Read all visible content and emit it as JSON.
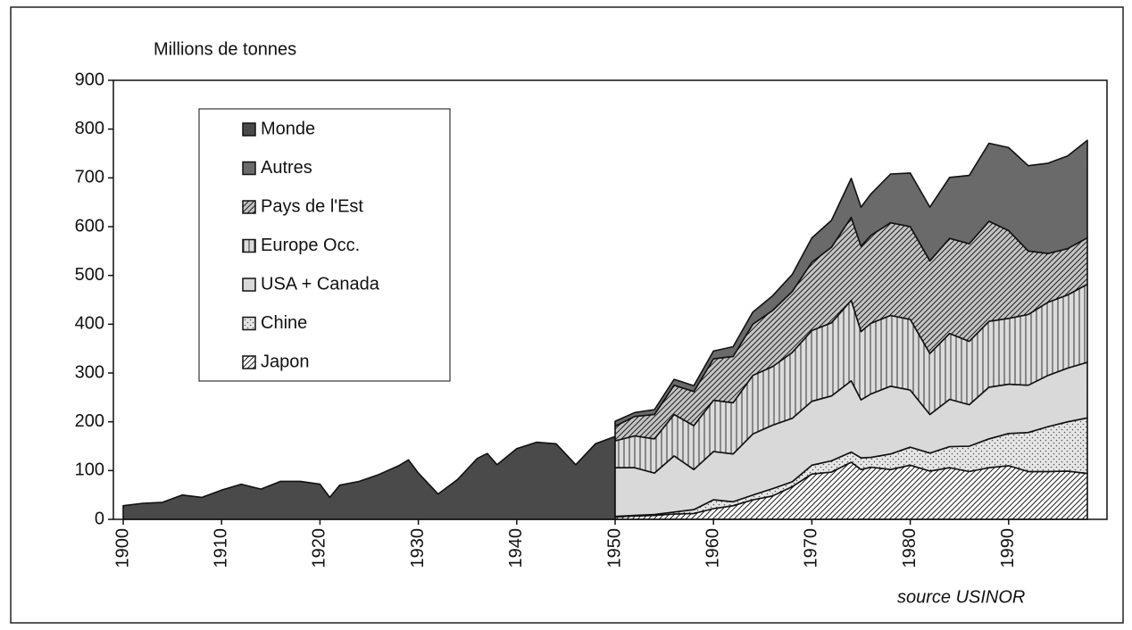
{
  "chart_data": {
    "type": "stacked_area",
    "y_label": "Millions de tonnes",
    "source": "source USINOR",
    "x": [
      1900,
      1902,
      1904,
      1906,
      1908,
      1910,
      1912,
      1914,
      1916,
      1918,
      1920,
      1921,
      1922,
      1924,
      1926,
      1928,
      1929,
      1930,
      1932,
      1934,
      1936,
      1937,
      1938,
      1940,
      1942,
      1944,
      1946,
      1948,
      1950,
      1952,
      1954,
      1956,
      1958,
      1960,
      1962,
      1964,
      1966,
      1968,
      1970,
      1972,
      1974,
      1975,
      1976,
      1978,
      1980,
      1982,
      1984,
      1986,
      1988,
      1990,
      1992,
      1994,
      1996,
      1998
    ],
    "xlim": [
      1899,
      2000
    ],
    "xticks": [
      1900,
      1910,
      1920,
      1930,
      1940,
      1950,
      1960,
      1970,
      1980,
      1990
    ],
    "ylim": [
      0,
      900
    ],
    "yticks": [
      0,
      100,
      200,
      300,
      400,
      500,
      600,
      700,
      800,
      900
    ],
    "grid": false,
    "legend_position": "upper left",
    "series": [
      {
        "name": "Monde",
        "stack": "world",
        "color": "#4a4a4a",
        "pattern": "solid",
        "values": [
          28,
          33,
          35,
          50,
          45,
          60,
          72,
          62,
          78,
          78,
          72,
          45,
          70,
          78,
          92,
          110,
          122,
          95,
          52,
          82,
          125,
          135,
          112,
          145,
          158,
          155,
          112,
          155,
          170,
          null,
          null,
          null,
          null,
          null,
          null,
          null,
          null,
          null,
          null,
          null,
          null,
          null,
          null,
          null,
          null,
          null,
          null,
          null,
          null,
          null,
          null,
          null,
          null,
          null
        ]
      },
      {
        "name": "Japon",
        "stack": "regions",
        "color": "#ffffff",
        "pattern": "diagonal",
        "values": [
          null,
          null,
          null,
          null,
          null,
          null,
          null,
          null,
          null,
          null,
          null,
          null,
          null,
          null,
          null,
          null,
          null,
          null,
          null,
          null,
          null,
          null,
          null,
          null,
          null,
          null,
          null,
          null,
          5,
          7,
          8,
          11,
          12,
          22,
          28,
          40,
          48,
          67,
          93,
          97,
          117,
          102,
          107,
          102,
          111,
          99,
          106,
          98,
          106,
          110,
          98,
          98,
          99,
          94
        ]
      },
      {
        "name": "Chine",
        "stack": "regions",
        "color": "#e6e6e6",
        "pattern": "dots",
        "values": [
          null,
          null,
          null,
          null,
          null,
          null,
          null,
          null,
          null,
          null,
          null,
          null,
          null,
          null,
          null,
          null,
          null,
          null,
          null,
          null,
          null,
          null,
          null,
          null,
          null,
          null,
          null,
          null,
          1,
          1,
          2,
          4,
          8,
          18,
          8,
          10,
          15,
          10,
          18,
          23,
          21,
          24,
          20,
          32,
          37,
          37,
          43,
          52,
          59,
          66,
          80,
          92,
          101,
          114
        ]
      },
      {
        "name": "USA + Canada",
        "stack": "regions",
        "color": "#d9d9d9",
        "pattern": "solid",
        "values": [
          null,
          null,
          null,
          null,
          null,
          null,
          null,
          null,
          null,
          null,
          null,
          null,
          null,
          null,
          null,
          null,
          null,
          null,
          null,
          null,
          null,
          null,
          null,
          null,
          null,
          null,
          null,
          null,
          100,
          98,
          85,
          115,
          82,
          99,
          98,
          125,
          130,
          130,
          131,
          133,
          146,
          119,
          130,
          139,
          117,
          79,
          97,
          85,
          106,
          101,
          97,
          105,
          110,
          114
        ]
      },
      {
        "name": "Europe Occ.",
        "stack": "regions",
        "color": "#dcdcdc",
        "pattern": "vertical",
        "values": [
          null,
          null,
          null,
          null,
          null,
          null,
          null,
          null,
          null,
          null,
          null,
          null,
          null,
          null,
          null,
          null,
          null,
          null,
          null,
          null,
          null,
          null,
          null,
          null,
          null,
          null,
          null,
          null,
          55,
          65,
          70,
          85,
          90,
          105,
          105,
          120,
          120,
          135,
          145,
          150,
          165,
          140,
          145,
          145,
          145,
          125,
          135,
          130,
          135,
          135,
          145,
          150,
          150,
          160
        ]
      },
      {
        "name": "Pays de l'Est",
        "stack": "regions",
        "color": "#c4c4c4",
        "pattern": "diagonal",
        "values": [
          null,
          null,
          null,
          null,
          null,
          null,
          null,
          null,
          null,
          null,
          null,
          null,
          null,
          null,
          null,
          null,
          null,
          null,
          null,
          null,
          null,
          null,
          null,
          null,
          null,
          null,
          null,
          null,
          30,
          40,
          50,
          60,
          70,
          85,
          95,
          105,
          115,
          125,
          140,
          155,
          170,
          175,
          180,
          190,
          190,
          190,
          195,
          200,
          205,
          180,
          130,
          100,
          95,
          95
        ]
      },
      {
        "name": "Autres",
        "stack": "regions",
        "color": "#6a6a6a",
        "pattern": "solid",
        "values": [
          null,
          null,
          null,
          null,
          null,
          null,
          null,
          null,
          null,
          null,
          null,
          null,
          null,
          null,
          null,
          null,
          null,
          null,
          null,
          null,
          null,
          null,
          null,
          null,
          null,
          null,
          null,
          null,
          10,
          8,
          10,
          12,
          12,
          16,
          20,
          25,
          30,
          35,
          50,
          55,
          80,
          80,
          85,
          100,
          110,
          110,
          125,
          140,
          160,
          170,
          175,
          185,
          190,
          200
        ]
      }
    ]
  }
}
